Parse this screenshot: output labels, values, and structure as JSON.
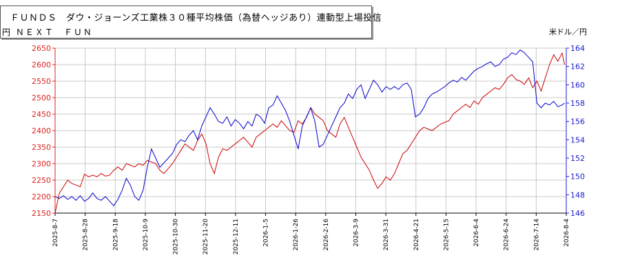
{
  "title": {
    "line1": "ＦＵＮＤＳ　ダウ・ジョーンズ工業株３０種平均株価（為替ヘッジあり）連動型上場投信",
    "line2": "円 ＮＥＸＴ　ＦＵＮ"
  },
  "right_unit": "米ドル／円",
  "chart_data": {
    "type": "line",
    "x_tick_labels": [
      "2025-8-7",
      "2025-8-28",
      "2025-9-18",
      "2025-10-9",
      "2025-10-30",
      "2025-11-20",
      "2025-12-11",
      "2026-1-5",
      "2026-1-26",
      "2026-2-16",
      "2026-3-9",
      "2026-3-31",
      "2026-4-21",
      "2026-5-15",
      "2026-6-4",
      "2026-6-24",
      "2026-7-14",
      "2026-8-4"
    ],
    "left_axis": {
      "ticks": [
        2150,
        2200,
        2250,
        2300,
        2350,
        2400,
        2450,
        2500,
        2550,
        2600,
        2650
      ],
      "range": [
        2150,
        2650
      ],
      "color": "#e02020"
    },
    "right_axis": {
      "ticks": [
        146,
        148,
        150,
        152,
        154,
        156,
        158,
        160,
        162,
        164
      ],
      "range": [
        146,
        164
      ],
      "color": "#1a1ad0"
    },
    "grid": true,
    "series": [
      {
        "axis": "left",
        "color": "#cc0000",
        "points": [
          [
            0,
            2150
          ],
          [
            0.5,
            2210
          ],
          [
            1,
            2230
          ],
          [
            1.5,
            2250
          ],
          [
            2,
            2240
          ],
          [
            2.5,
            2235
          ],
          [
            3,
            2230
          ],
          [
            3.5,
            2268
          ],
          [
            4,
            2260
          ],
          [
            4.5,
            2265
          ],
          [
            5,
            2260
          ],
          [
            5.5,
            2270
          ],
          [
            6,
            2262
          ],
          [
            6.5,
            2265
          ],
          [
            7,
            2280
          ],
          [
            7.5,
            2290
          ],
          [
            8,
            2280
          ],
          [
            8.5,
            2300
          ],
          [
            9,
            2295
          ],
          [
            9.5,
            2290
          ],
          [
            10,
            2300
          ],
          [
            10.5,
            2295
          ],
          [
            11,
            2310
          ],
          [
            11.5,
            2305
          ],
          [
            12,
            2300
          ],
          [
            12.5,
            2280
          ],
          [
            13,
            2270
          ],
          [
            13.5,
            2285
          ],
          [
            14,
            2300
          ],
          [
            14.5,
            2320
          ],
          [
            15,
            2340
          ],
          [
            15.5,
            2360
          ],
          [
            16,
            2350
          ],
          [
            16.5,
            2340
          ],
          [
            17,
            2370
          ],
          [
            17.5,
            2390
          ],
          [
            18,
            2360
          ],
          [
            18.5,
            2300
          ],
          [
            19,
            2270
          ],
          [
            19.5,
            2320
          ],
          [
            20,
            2345
          ],
          [
            20.5,
            2340
          ],
          [
            21,
            2350
          ],
          [
            21.5,
            2360
          ],
          [
            22,
            2370
          ],
          [
            22.5,
            2380
          ],
          [
            23,
            2365
          ],
          [
            23.5,
            2350
          ],
          [
            24,
            2380
          ],
          [
            24.5,
            2390
          ],
          [
            25,
            2400
          ],
          [
            25.5,
            2410
          ],
          [
            26,
            2420
          ],
          [
            26.5,
            2410
          ],
          [
            27,
            2430
          ],
          [
            27.5,
            2415
          ],
          [
            28,
            2400
          ],
          [
            28.5,
            2395
          ],
          [
            29,
            2430
          ],
          [
            29.5,
            2420
          ],
          [
            30,
            2440
          ],
          [
            30.5,
            2470
          ],
          [
            31,
            2450
          ],
          [
            31.5,
            2440
          ],
          [
            32,
            2430
          ],
          [
            32.5,
            2400
          ],
          [
            33,
            2390
          ],
          [
            33.5,
            2380
          ],
          [
            34,
            2420
          ],
          [
            34.5,
            2440
          ],
          [
            35,
            2410
          ],
          [
            35.5,
            2380
          ],
          [
            36,
            2350
          ],
          [
            36.5,
            2320
          ],
          [
            37,
            2300
          ],
          [
            37.5,
            2280
          ],
          [
            38,
            2250
          ],
          [
            38.5,
            2225
          ],
          [
            39,
            2240
          ],
          [
            39.5,
            2260
          ],
          [
            40,
            2250
          ],
          [
            40.5,
            2270
          ],
          [
            41,
            2300
          ],
          [
            41.5,
            2330
          ],
          [
            42,
            2340
          ],
          [
            42.5,
            2360
          ],
          [
            43,
            2380
          ],
          [
            43.5,
            2400
          ],
          [
            44,
            2410
          ],
          [
            44.5,
            2405
          ],
          [
            45,
            2400
          ],
          [
            45.5,
            2410
          ],
          [
            46,
            2420
          ],
          [
            46.5,
            2425
          ],
          [
            47,
            2430
          ],
          [
            47.5,
            2450
          ],
          [
            48,
            2460
          ],
          [
            48.5,
            2470
          ],
          [
            49,
            2480
          ],
          [
            49.5,
            2470
          ],
          [
            50,
            2490
          ],
          [
            50.5,
            2480
          ],
          [
            51,
            2500
          ],
          [
            51.5,
            2510
          ],
          [
            52,
            2520
          ],
          [
            52.5,
            2530
          ],
          [
            53,
            2525
          ],
          [
            53.5,
            2540
          ],
          [
            54,
            2560
          ],
          [
            54.5,
            2570
          ],
          [
            55,
            2555
          ],
          [
            55.5,
            2550
          ],
          [
            56,
            2540
          ],
          [
            56.5,
            2560
          ],
          [
            57,
            2530
          ],
          [
            57.5,
            2550
          ],
          [
            58,
            2520
          ],
          [
            58.5,
            2560
          ],
          [
            59,
            2600
          ],
          [
            59.5,
            2630
          ],
          [
            60,
            2610
          ],
          [
            60.5,
            2635
          ],
          [
            60.8,
            2600
          ]
        ]
      },
      {
        "axis": "right",
        "color": "#0000cc",
        "points": [
          [
            0,
            147.8
          ],
          [
            0.5,
            147.6
          ],
          [
            1,
            147.9
          ],
          [
            1.5,
            147.5
          ],
          [
            2,
            147.8
          ],
          [
            2.5,
            147.4
          ],
          [
            3,
            147.9
          ],
          [
            3.5,
            147.3
          ],
          [
            4,
            147.6
          ],
          [
            4.5,
            148.2
          ],
          [
            5,
            147.6
          ],
          [
            5.5,
            147.4
          ],
          [
            6,
            147.8
          ],
          [
            6.5,
            147.3
          ],
          [
            7,
            146.8
          ],
          [
            7.5,
            147.5
          ],
          [
            8,
            148.5
          ],
          [
            8.5,
            149.8
          ],
          [
            9,
            149.0
          ],
          [
            9.5,
            147.8
          ],
          [
            10,
            147.4
          ],
          [
            10.5,
            148.5
          ],
          [
            11,
            151.0
          ],
          [
            11.5,
            153.0
          ],
          [
            12,
            152.0
          ],
          [
            12.5,
            151.0
          ],
          [
            13,
            151.5
          ],
          [
            13.5,
            152.0
          ],
          [
            14,
            152.5
          ],
          [
            14.5,
            153.5
          ],
          [
            15,
            154.0
          ],
          [
            15.5,
            153.8
          ],
          [
            16,
            154.5
          ],
          [
            16.5,
            155.0
          ],
          [
            17,
            154.0
          ],
          [
            17.5,
            155.5
          ],
          [
            18,
            156.5
          ],
          [
            18.5,
            157.5
          ],
          [
            19,
            156.8
          ],
          [
            19.5,
            156.0
          ],
          [
            20,
            155.8
          ],
          [
            20.5,
            156.5
          ],
          [
            21,
            155.5
          ],
          [
            21.5,
            156.2
          ],
          [
            22,
            155.8
          ],
          [
            22.5,
            155.2
          ],
          [
            23,
            156.0
          ],
          [
            23.5,
            155.5
          ],
          [
            24,
            156.8
          ],
          [
            24.5,
            156.5
          ],
          [
            25,
            155.8
          ],
          [
            25.5,
            157.5
          ],
          [
            26,
            157.8
          ],
          [
            26.5,
            158.8
          ],
          [
            27,
            158.0
          ],
          [
            27.5,
            157.2
          ],
          [
            28,
            156.0
          ],
          [
            28.5,
            154.5
          ],
          [
            29,
            153.0
          ],
          [
            29.5,
            155.5
          ],
          [
            30,
            156.5
          ],
          [
            30.5,
            157.5
          ],
          [
            31,
            156.0
          ],
          [
            31.5,
            153.2
          ],
          [
            32,
            153.5
          ],
          [
            32.5,
            154.5
          ],
          [
            33,
            155.5
          ],
          [
            33.5,
            156.5
          ],
          [
            34,
            157.5
          ],
          [
            34.5,
            158.0
          ],
          [
            35,
            159.0
          ],
          [
            35.5,
            158.5
          ],
          [
            36,
            159.5
          ],
          [
            36.5,
            160.0
          ],
          [
            37,
            158.5
          ],
          [
            37.5,
            159.5
          ],
          [
            38,
            160.5
          ],
          [
            38.5,
            160.0
          ],
          [
            39,
            159.2
          ],
          [
            39.5,
            159.8
          ],
          [
            40,
            159.5
          ],
          [
            40.5,
            159.8
          ],
          [
            41,
            159.5
          ],
          [
            41.5,
            160.0
          ],
          [
            42,
            160.2
          ],
          [
            42.5,
            159.5
          ],
          [
            43,
            156.5
          ],
          [
            43.5,
            156.8
          ],
          [
            44,
            157.5
          ],
          [
            44.5,
            158.5
          ],
          [
            45,
            159.0
          ],
          [
            45.5,
            159.2
          ],
          [
            46,
            159.5
          ],
          [
            46.5,
            159.8
          ],
          [
            47,
            160.2
          ],
          [
            47.5,
            160.5
          ],
          [
            48,
            160.3
          ],
          [
            48.5,
            160.8
          ],
          [
            49,
            160.5
          ],
          [
            49.5,
            161.0
          ],
          [
            50,
            161.5
          ],
          [
            50.5,
            161.8
          ],
          [
            51,
            162.0
          ],
          [
            51.5,
            162.3
          ],
          [
            52,
            162.5
          ],
          [
            52.5,
            162.0
          ],
          [
            53,
            162.2
          ],
          [
            53.5,
            162.8
          ],
          [
            54,
            163.0
          ],
          [
            54.5,
            163.5
          ],
          [
            55,
            163.3
          ],
          [
            55.5,
            163.8
          ],
          [
            56,
            163.5
          ],
          [
            56.5,
            163.0
          ],
          [
            57,
            162.5
          ],
          [
            57.5,
            158.0
          ],
          [
            58,
            157.5
          ],
          [
            58.5,
            158.0
          ],
          [
            59,
            157.8
          ],
          [
            59.5,
            158.2
          ],
          [
            60,
            157.6
          ],
          [
            60.5,
            157.8
          ],
          [
            60.8,
            158.0
          ]
        ]
      }
    ]
  }
}
